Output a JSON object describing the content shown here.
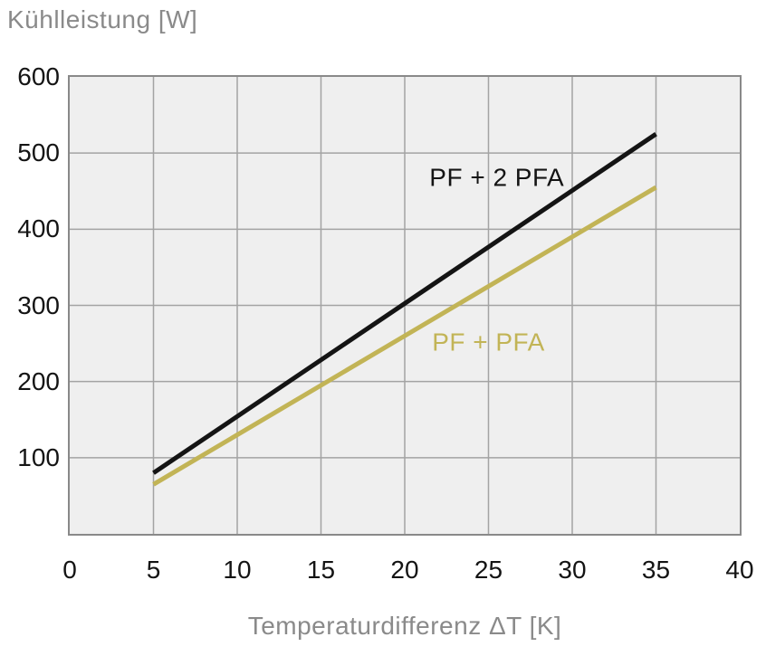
{
  "chart_data": {
    "type": "line",
    "title": "",
    "ylabel": "Kühlleistung [W]",
    "xlabel": "Temperaturdifferenz ΔT [K]",
    "xlim": [
      0,
      40
    ],
    "ylim": [
      0,
      600
    ],
    "xticks": [
      0,
      5,
      10,
      15,
      20,
      25,
      30,
      35,
      40
    ],
    "yticks": [
      100,
      200,
      300,
      400,
      500,
      600
    ],
    "grid": true,
    "legend_position": "inline-labels",
    "colors": {
      "plot_background": "#efefef",
      "grid_line": "#a3a3a3",
      "plot_border": "#898989",
      "tick_text": "#141414",
      "axis_title_text": "#8a8a8a"
    },
    "series": [
      {
        "name": "PF + 2 PFA",
        "color": "#141414",
        "x": [
          5,
          35
        ],
        "values": [
          80,
          525
        ],
        "label_anchor": {
          "x": 25.5,
          "y": 468
        }
      },
      {
        "name": "PF + PFA",
        "color": "#c2b456",
        "x": [
          5,
          35
        ],
        "values": [
          65,
          455
        ],
        "label_anchor": {
          "x": 25.0,
          "y": 252
        }
      }
    ]
  }
}
